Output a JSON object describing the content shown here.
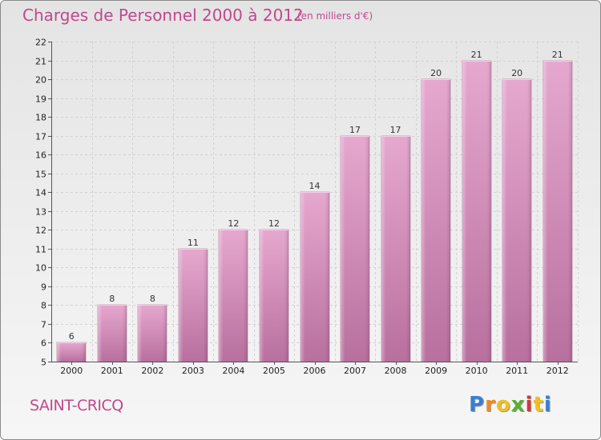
{
  "title": "Charges de Personnel 2000 à 2012",
  "unit": "(en milliers d'€)",
  "city": "SAINT-CRICQ",
  "logo": {
    "letters": [
      "P",
      "r",
      "o",
      "x",
      "i",
      "t",
      "i"
    ]
  },
  "colors": {
    "bar": "#cc7fae",
    "bar_light": "#e6a8cf",
    "bar_dark": "#b8709e",
    "title": "#c0488c"
  },
  "chart_data": {
    "type": "bar",
    "title": "Charges de Personnel 2000 à 2012",
    "subtitle": "(en milliers d'€)",
    "xlabel": "",
    "ylabel": "",
    "categories": [
      "2000",
      "2001",
      "2002",
      "2003",
      "2004",
      "2005",
      "2006",
      "2007",
      "2008",
      "2009",
      "2010",
      "2011",
      "2012"
    ],
    "values": [
      6,
      8,
      8,
      11,
      12,
      12,
      14,
      17,
      17,
      20,
      21,
      20,
      21
    ],
    "ylim": [
      5,
      22
    ],
    "yticks": [
      5,
      6,
      7,
      8,
      9,
      10,
      11,
      12,
      13,
      14,
      15,
      16,
      17,
      18,
      19,
      20,
      21,
      22
    ],
    "grid": true,
    "legend": "none"
  }
}
